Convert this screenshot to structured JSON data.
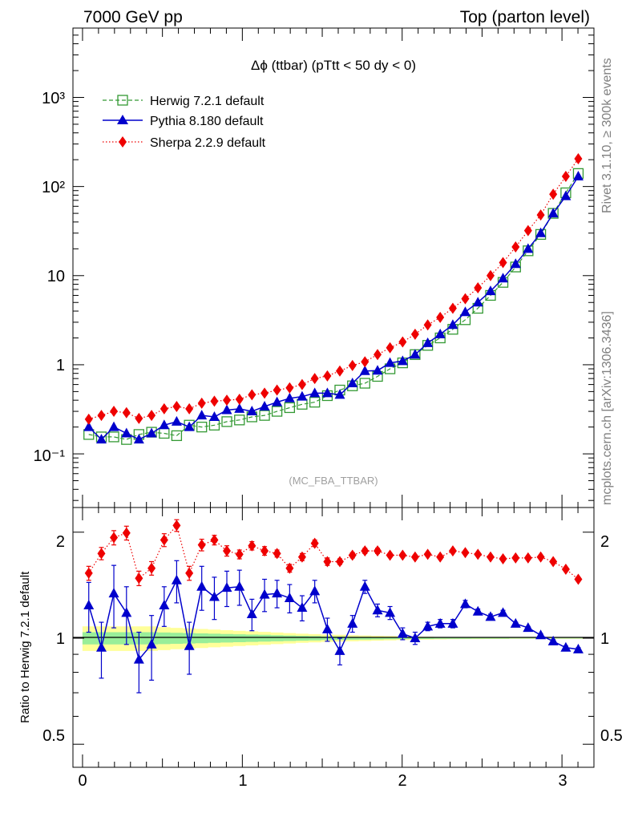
{
  "header": {
    "left": "7000 GeV pp",
    "right": "Top (parton level)"
  },
  "side_labels": {
    "rivet": "Rivet 3.1.10, ≥ 300k events",
    "mcplots": "mcplots.cern.ch [arXiv:1306.3436]"
  },
  "watermark": "(MC_FBA_TTBAR)",
  "chart_data": [
    {
      "type": "line",
      "panel": "main",
      "title": "Δϕ (ttbar) (pTtt < 50 dy < 0)",
      "xlim": [
        -0.06,
        3.2
      ],
      "ylim": [
        0.025,
        6000
      ],
      "yscale": "log",
      "y_ticks": [
        "10⁻¹",
        "1",
        "10",
        "10²",
        "10³"
      ],
      "legend_position": "top-left",
      "x": [
        0.039,
        0.118,
        0.196,
        0.275,
        0.353,
        0.432,
        0.511,
        0.589,
        0.668,
        0.746,
        0.825,
        0.903,
        0.982,
        1.06,
        1.139,
        1.217,
        1.296,
        1.374,
        1.453,
        1.532,
        1.61,
        1.689,
        1.767,
        1.846,
        1.924,
        2.003,
        2.081,
        2.16,
        2.238,
        2.317,
        2.395,
        2.474,
        2.553,
        2.631,
        2.71,
        2.788,
        2.867,
        2.945,
        3.024,
        3.102
      ],
      "series": [
        {
          "name": "Herwig 7.2.1 default",
          "color": "#339933",
          "marker": "open-square",
          "line": "dashed",
          "values": [
            0.165,
            0.155,
            0.155,
            0.145,
            0.165,
            0.175,
            0.17,
            0.16,
            0.21,
            0.2,
            0.21,
            0.23,
            0.24,
            0.26,
            0.27,
            0.3,
            0.33,
            0.36,
            0.38,
            0.45,
            0.52,
            0.58,
            0.62,
            0.74,
            0.9,
            1.05,
            1.3,
            1.65,
            2.0,
            2.5,
            3.2,
            4.3,
            6.0,
            8.4,
            12.5,
            19.0,
            29.0,
            50.0,
            85.0,
            140.0
          ]
        },
        {
          "name": "Pythia 8.180 default",
          "color": "#0000cc",
          "marker": "filled-triangle",
          "line": "solid",
          "values": [
            0.2,
            0.145,
            0.2,
            0.17,
            0.145,
            0.17,
            0.21,
            0.23,
            0.2,
            0.27,
            0.26,
            0.31,
            0.32,
            0.3,
            0.34,
            0.38,
            0.42,
            0.44,
            0.48,
            0.48,
            0.46,
            0.62,
            0.85,
            0.86,
            1.05,
            1.1,
            1.3,
            1.75,
            2.2,
            2.8,
            3.9,
            5.0,
            6.7,
            9.3,
            13.5,
            20.0,
            30.0,
            50.0,
            78.0,
            130.0
          ]
        },
        {
          "name": "Sherpa 2.2.9 default",
          "color": "#ee0000",
          "marker": "filled-diamond",
          "line": "dotted",
          "values": [
            0.245,
            0.27,
            0.3,
            0.29,
            0.25,
            0.27,
            0.32,
            0.34,
            0.32,
            0.37,
            0.39,
            0.4,
            0.41,
            0.46,
            0.48,
            0.52,
            0.55,
            0.6,
            0.7,
            0.75,
            0.85,
            0.98,
            1.08,
            1.3,
            1.55,
            1.8,
            2.2,
            2.8,
            3.4,
            4.3,
            5.5,
            7.3,
            10.0,
            14.0,
            21.0,
            32.0,
            48.0,
            82.0,
            130.0,
            205.0
          ]
        }
      ]
    },
    {
      "type": "line",
      "panel": "ratio",
      "ylabel": "Ratio to Herwig 7.2.1 default",
      "xlim": [
        -0.06,
        3.2
      ],
      "ylim": [
        0.43,
        2.35
      ],
      "yscale": "log",
      "x_ticks": [
        "0",
        "1",
        "2",
        "3"
      ],
      "y_ticks": [
        "0.5",
        "1",
        "2"
      ],
      "reference_value": 1,
      "band_1sigma_halfwidth": [
        0.04,
        0.04,
        0.04,
        0.04,
        0.04,
        0.04,
        0.038,
        0.036,
        0.034,
        0.032,
        0.03,
        0.028,
        0.026,
        0.024,
        0.022,
        0.02,
        0.018,
        0.016,
        0.014,
        0.012,
        0.011,
        0.01,
        0.009,
        0.008,
        0.007,
        0.006,
        0.005,
        0.005,
        0.004,
        0.004,
        0.004,
        0.003,
        0.003,
        0.003,
        0.002,
        0.002,
        0.002,
        0.002,
        0.002,
        0.002
      ],
      "band_2sigma_halfwidth": [
        0.08,
        0.08,
        0.08,
        0.08,
        0.08,
        0.08,
        0.075,
        0.07,
        0.066,
        0.062,
        0.058,
        0.054,
        0.05,
        0.046,
        0.042,
        0.038,
        0.034,
        0.03,
        0.027,
        0.024,
        0.022,
        0.02,
        0.018,
        0.016,
        0.014,
        0.012,
        0.01,
        0.009,
        0.008,
        0.007,
        0.006,
        0.006,
        0.005,
        0.005,
        0.004,
        0.004,
        0.004,
        0.004,
        0.004,
        0.004
      ],
      "x": [
        0.039,
        0.118,
        0.196,
        0.275,
        0.353,
        0.432,
        0.511,
        0.589,
        0.668,
        0.746,
        0.825,
        0.903,
        0.982,
        1.06,
        1.139,
        1.217,
        1.296,
        1.374,
        1.453,
        1.532,
        1.61,
        1.689,
        1.767,
        1.846,
        1.924,
        2.003,
        2.081,
        2.16,
        2.238,
        2.317,
        2.395,
        2.474,
        2.553,
        2.631,
        2.71,
        2.788,
        2.867,
        2.945,
        3.024,
        3.102
      ],
      "series": [
        {
          "name": "Pythia 8.180 default",
          "color": "#0000cc",
          "marker": "filled-triangle",
          "values": [
            1.24,
            0.94,
            1.34,
            1.18,
            0.87,
            0.96,
            1.24,
            1.46,
            0.95,
            1.4,
            1.31,
            1.39,
            1.4,
            1.17,
            1.33,
            1.34,
            1.3,
            1.22,
            1.36,
            1.06,
            0.92,
            1.1,
            1.4,
            1.2,
            1.18,
            1.03,
            1.0,
            1.08,
            1.1,
            1.1,
            1.25,
            1.19,
            1.15,
            1.18,
            1.1,
            1.07,
            1.02,
            0.98,
            0.94,
            0.93
          ],
          "errors": [
            0.2,
            0.17,
            0.27,
            0.22,
            0.17,
            0.2,
            0.16,
            0.2,
            0.16,
            0.2,
            0.18,
            0.16,
            0.16,
            0.12,
            0.14,
            0.12,
            0.12,
            0.1,
            0.1,
            0.08,
            0.08,
            0.06,
            0.06,
            0.05,
            0.05,
            0.04,
            0.04,
            0.03,
            0.03,
            0.03,
            0.03,
            0.02,
            0.02,
            0.02,
            0.01,
            0.01,
            0.01,
            0.01,
            0.01,
            0.01
          ]
        },
        {
          "name": "Sherpa 2.2.9 default",
          "color": "#ee0000",
          "marker": "filled-diamond",
          "values": [
            1.53,
            1.74,
            1.93,
            1.99,
            1.48,
            1.58,
            1.9,
            2.09,
            1.53,
            1.84,
            1.9,
            1.77,
            1.73,
            1.83,
            1.77,
            1.74,
            1.58,
            1.7,
            1.86,
            1.65,
            1.65,
            1.72,
            1.77,
            1.77,
            1.72,
            1.72,
            1.7,
            1.73,
            1.7,
            1.77,
            1.75,
            1.73,
            1.7,
            1.68,
            1.69,
            1.69,
            1.7,
            1.65,
            1.57,
            1.47
          ],
          "errors": [
            0.07,
            0.07,
            0.09,
            0.09,
            0.07,
            0.07,
            0.08,
            0.08,
            0.07,
            0.07,
            0.06,
            0.06,
            0.05,
            0.05,
            0.05,
            0.04,
            0.04,
            0.04,
            0.04,
            0.04,
            0.03,
            0.03,
            0.03,
            0.03,
            0.02,
            0.02,
            0.02,
            0.02,
            0.02,
            0.02,
            0.01,
            0.01,
            0.01,
            0.01,
            0.01,
            0.01,
            0.01,
            0.01,
            0.01,
            0.01
          ]
        }
      ]
    }
  ]
}
